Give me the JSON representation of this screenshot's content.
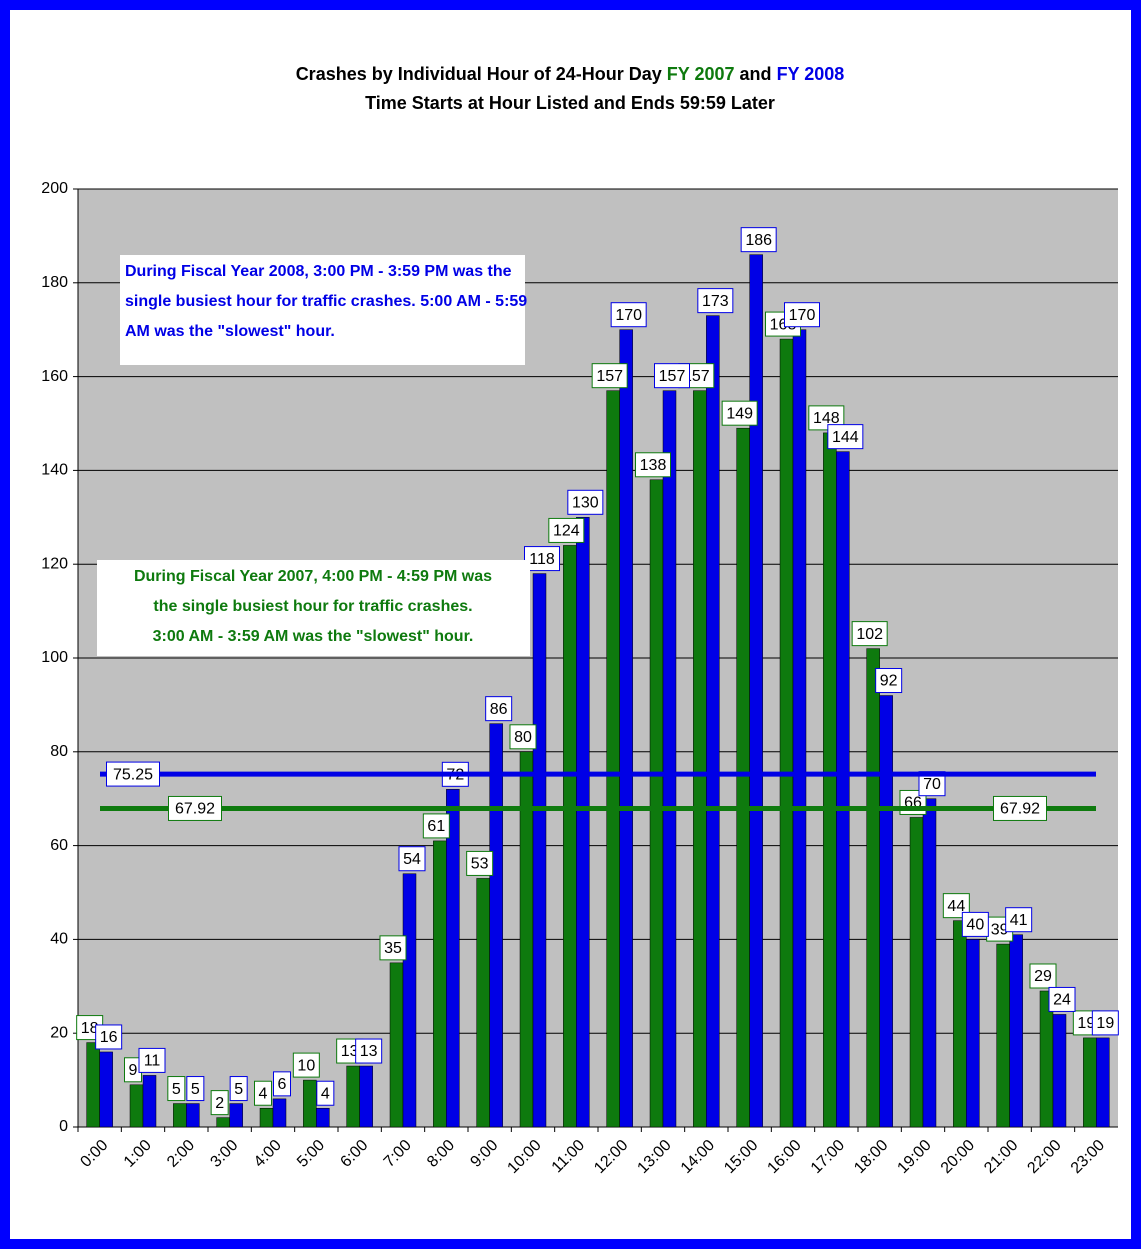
{
  "chart_data": {
    "type": "bar",
    "title": "Crashes by Individual Hour of 24-Hour Day",
    "title_joiner": "and",
    "subtitle": "Time Starts at Hour Listed and Ends 59:59 Later",
    "categories": [
      "0:00",
      "1:00",
      "2:00",
      "3:00",
      "4:00",
      "5:00",
      "6:00",
      "7:00",
      "8:00",
      "9:00",
      "10:00",
      "11:00",
      "12:00",
      "13:00",
      "14:00",
      "15:00",
      "16:00",
      "17:00",
      "18:00",
      "19:00",
      "20:00",
      "21:00",
      "22:00",
      "23:00"
    ],
    "series": [
      {
        "name": "FY 2007",
        "color": "#0e7a0e",
        "values": [
          18,
          9,
          5,
          2,
          4,
          10,
          13,
          35,
          61,
          53,
          80,
          124,
          157,
          138,
          157,
          149,
          168,
          148,
          102,
          66,
          44,
          39,
          29,
          19
        ]
      },
      {
        "name": "FY 2008",
        "color": "#0000e6",
        "values": [
          16,
          11,
          5,
          5,
          6,
          4,
          13,
          54,
          72,
          86,
          118,
          130,
          170,
          157,
          173,
          186,
          170,
          144,
          92,
          70,
          40,
          41,
          24,
          19
        ]
      }
    ],
    "averages": [
      {
        "series": 0,
        "value": 67.92
      },
      {
        "series": 1,
        "value": 75.25
      }
    ],
    "annotations": [
      {
        "series": 1,
        "lines": [
          "During Fiscal Year 2008, 3:00 PM - 3:59 PM was the",
          "single busiest hour for traffic crashes.  5:00 AM - 5:59",
          "AM was the \"slowest\" hour."
        ]
      },
      {
        "series": 0,
        "lines": [
          "During Fiscal Year 2007, 4:00 PM - 4:59 PM was",
          "the single busiest hour for traffic crashes.",
          "3:00 AM - 3:59 AM was the \"slowest\" hour."
        ]
      }
    ],
    "ylim": [
      0,
      200
    ],
    "yticks": [
      0,
      20,
      40,
      60,
      80,
      100,
      120,
      140,
      160,
      180,
      200
    ],
    "grid": true
  }
}
